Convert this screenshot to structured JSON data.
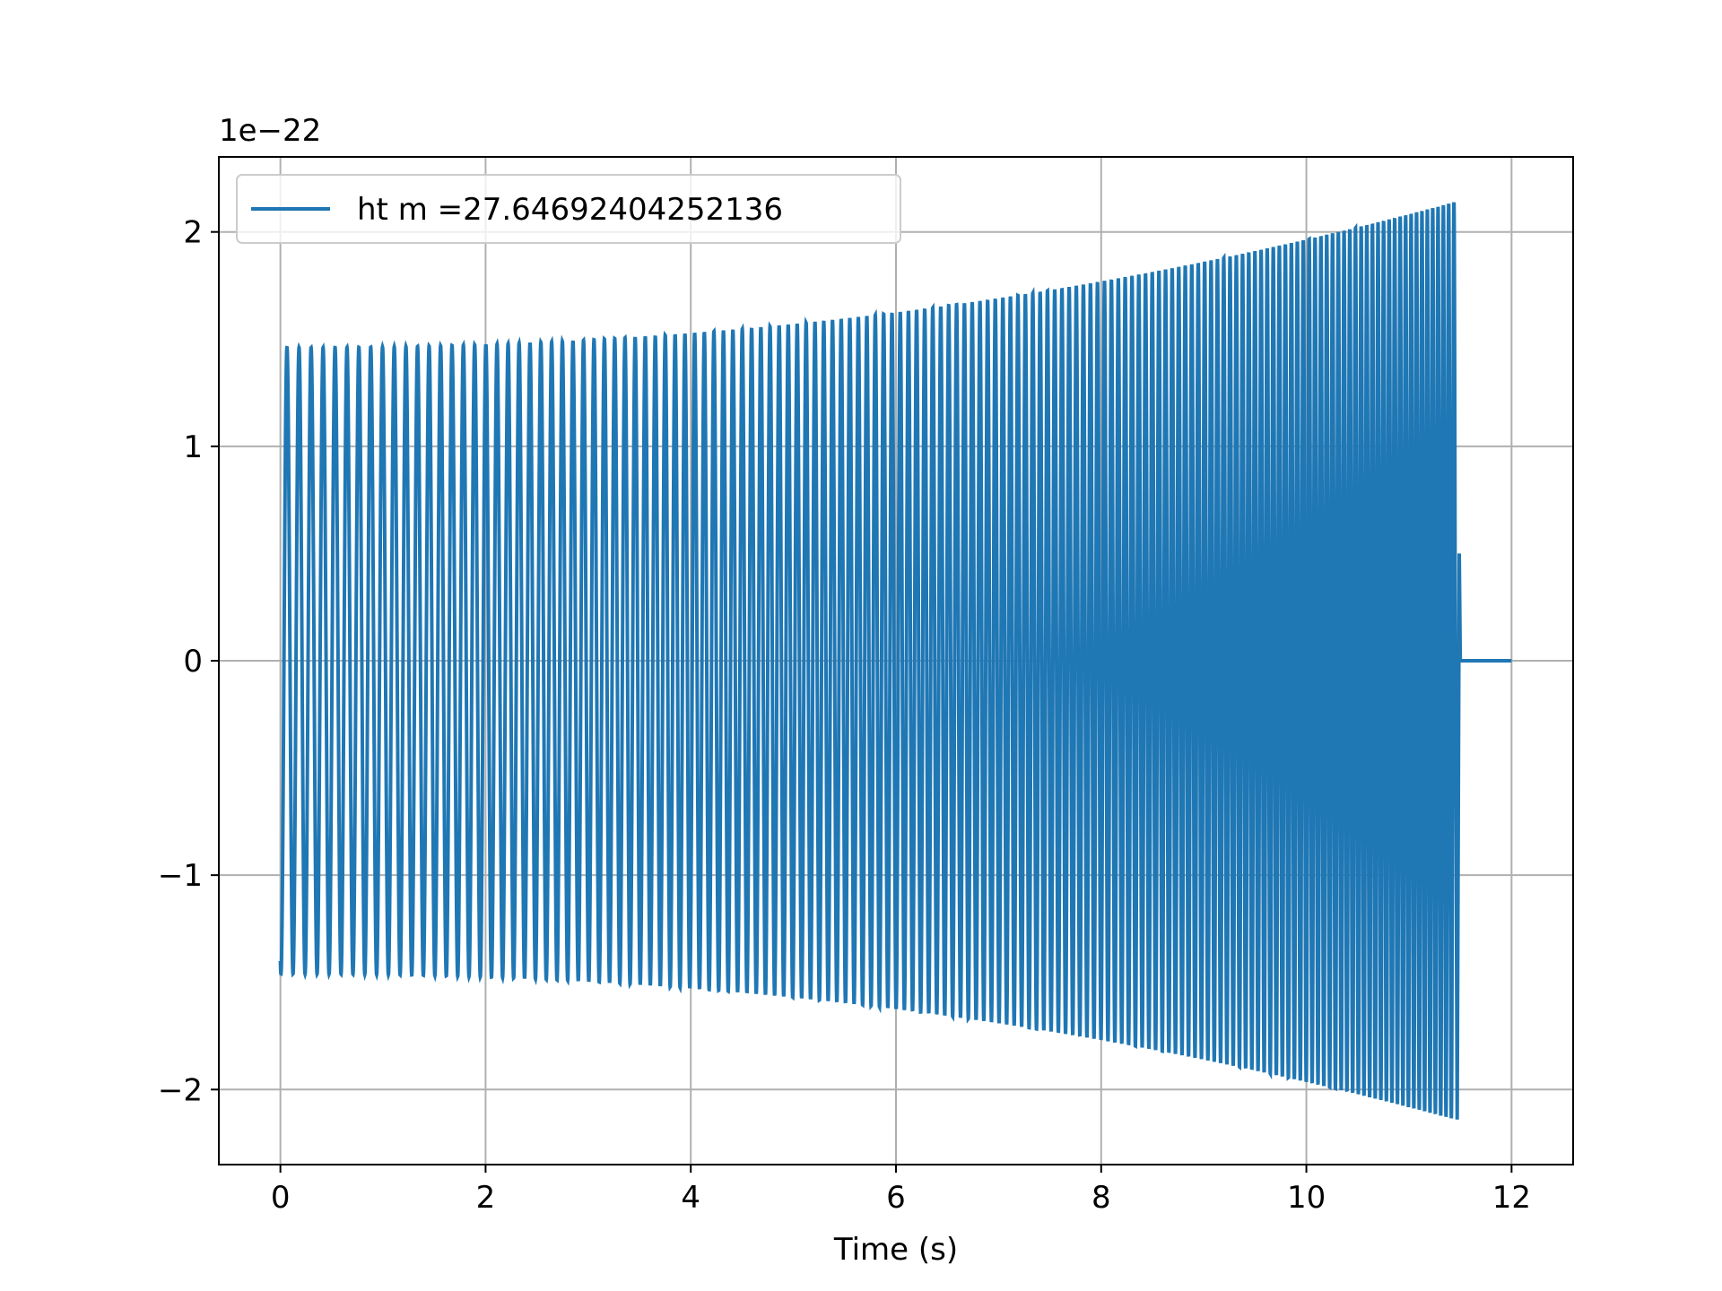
{
  "chart_data": {
    "type": "line",
    "title": "",
    "xlabel": "Time (s)",
    "ylabel": "",
    "y_offset_label": "1e−22",
    "xlim": [
      -0.6,
      12.6
    ],
    "ylim": [
      -2.35,
      2.35
    ],
    "x_ticks": [
      0,
      2,
      4,
      6,
      8,
      10,
      12
    ],
    "x_tick_labels": [
      "0",
      "2",
      "4",
      "6",
      "8",
      "10",
      "12"
    ],
    "y_ticks": [
      -2,
      -1,
      0,
      1,
      2
    ],
    "y_tick_labels": [
      "−2",
      "−1",
      "0",
      "1",
      "2"
    ],
    "grid": true,
    "legend_position": "upper-left",
    "series": [
      {
        "name": "ht m =27.64692404252136",
        "color": "#1f77b4",
        "description_values": {
          "start_time": 0.0,
          "merger_time": 11.45,
          "end_time": 12.0,
          "amplitude_start": 1.46,
          "amplitude_at_merger": 2.14,
          "frequency_start_hz": 8.5,
          "frequency_at_merger_hz": 19.5
        }
      }
    ]
  }
}
